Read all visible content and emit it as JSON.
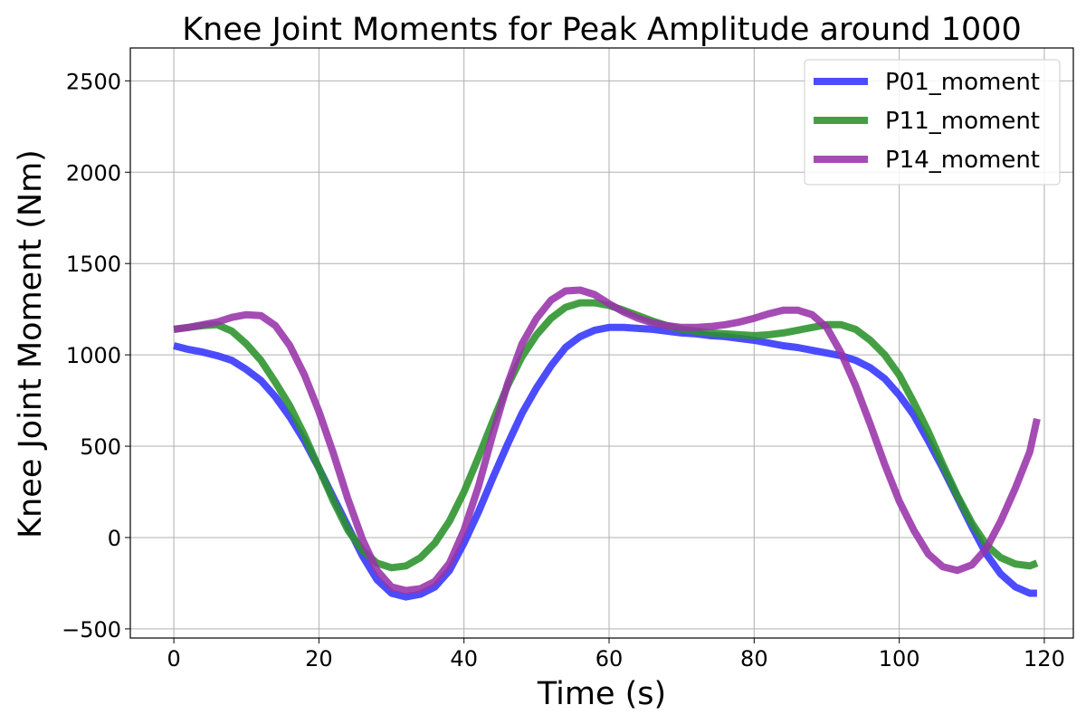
{
  "chart_data": {
    "type": "line",
    "title": "Knee Joint Moments for Peak Amplitude around 1000",
    "xlabel": "Time (s)",
    "ylabel": "Knee Joint Moment (Nm)",
    "xlim": [
      -6,
      124
    ],
    "ylim": [
      -550,
      2680
    ],
    "xticks": [
      0,
      20,
      40,
      60,
      80,
      100,
      120
    ],
    "yticks": [
      -500,
      0,
      500,
      1000,
      1500,
      2000,
      2500
    ],
    "xtick_labels": [
      "0",
      "20",
      "40",
      "60",
      "80",
      "100",
      "120"
    ],
    "ytick_labels": [
      "−500",
      "0",
      "500",
      "1000",
      "1500",
      "2000",
      "2500"
    ],
    "grid": true,
    "legend_position": "top-right",
    "series": [
      {
        "name": "P01_moment",
        "color": "#3333ff",
        "points": [
          [
            0,
            1050
          ],
          [
            2,
            1030
          ],
          [
            4,
            1015
          ],
          [
            6,
            995
          ],
          [
            8,
            970
          ],
          [
            10,
            920
          ],
          [
            12,
            860
          ],
          [
            14,
            770
          ],
          [
            16,
            660
          ],
          [
            18,
            530
          ],
          [
            20,
            380
          ],
          [
            22,
            220
          ],
          [
            24,
            60
          ],
          [
            26,
            -100
          ],
          [
            28,
            -230
          ],
          [
            30,
            -305
          ],
          [
            32,
            -325
          ],
          [
            34,
            -310
          ],
          [
            36,
            -270
          ],
          [
            38,
            -180
          ],
          [
            40,
            -30
          ],
          [
            42,
            140
          ],
          [
            44,
            330
          ],
          [
            46,
            510
          ],
          [
            48,
            680
          ],
          [
            50,
            820
          ],
          [
            52,
            940
          ],
          [
            54,
            1040
          ],
          [
            56,
            1100
          ],
          [
            58,
            1135
          ],
          [
            60,
            1150
          ],
          [
            62,
            1150
          ],
          [
            64,
            1145
          ],
          [
            66,
            1140
          ],
          [
            68,
            1130
          ],
          [
            70,
            1120
          ],
          [
            72,
            1115
          ],
          [
            74,
            1105
          ],
          [
            76,
            1100
          ],
          [
            78,
            1090
          ],
          [
            80,
            1080
          ],
          [
            82,
            1065
          ],
          [
            84,
            1050
          ],
          [
            86,
            1040
          ],
          [
            88,
            1025
          ],
          [
            90,
            1010
          ],
          [
            92,
            995
          ],
          [
            94,
            970
          ],
          [
            96,
            930
          ],
          [
            98,
            870
          ],
          [
            100,
            780
          ],
          [
            102,
            670
          ],
          [
            104,
            530
          ],
          [
            106,
            380
          ],
          [
            108,
            220
          ],
          [
            110,
            60
          ],
          [
            112,
            -90
          ],
          [
            114,
            -200
          ],
          [
            116,
            -270
          ],
          [
            118,
            -305
          ],
          [
            119,
            -305
          ]
        ]
      },
      {
        "name": "P11_moment",
        "color": "#2a922a",
        "points": [
          [
            0,
            1140
          ],
          [
            2,
            1150
          ],
          [
            4,
            1160
          ],
          [
            6,
            1165
          ],
          [
            8,
            1130
          ],
          [
            10,
            1060
          ],
          [
            12,
            970
          ],
          [
            14,
            850
          ],
          [
            16,
            720
          ],
          [
            18,
            560
          ],
          [
            20,
            380
          ],
          [
            22,
            200
          ],
          [
            24,
            40
          ],
          [
            26,
            -70
          ],
          [
            28,
            -140
          ],
          [
            30,
            -165
          ],
          [
            32,
            -155
          ],
          [
            34,
            -110
          ],
          [
            36,
            -30
          ],
          [
            38,
            90
          ],
          [
            40,
            250
          ],
          [
            42,
            440
          ],
          [
            44,
            640
          ],
          [
            46,
            830
          ],
          [
            48,
            990
          ],
          [
            50,
            1110
          ],
          [
            52,
            1200
          ],
          [
            54,
            1260
          ],
          [
            56,
            1285
          ],
          [
            58,
            1285
          ],
          [
            60,
            1270
          ],
          [
            62,
            1245
          ],
          [
            64,
            1215
          ],
          [
            66,
            1185
          ],
          [
            68,
            1160
          ],
          [
            70,
            1140
          ],
          [
            72,
            1130
          ],
          [
            74,
            1120
          ],
          [
            76,
            1115
          ],
          [
            78,
            1110
          ],
          [
            80,
            1105
          ],
          [
            82,
            1110
          ],
          [
            84,
            1120
          ],
          [
            86,
            1135
          ],
          [
            88,
            1150
          ],
          [
            90,
            1165
          ],
          [
            92,
            1165
          ],
          [
            94,
            1140
          ],
          [
            96,
            1080
          ],
          [
            98,
            1000
          ],
          [
            100,
            890
          ],
          [
            102,
            740
          ],
          [
            104,
            580
          ],
          [
            106,
            400
          ],
          [
            108,
            230
          ],
          [
            110,
            80
          ],
          [
            112,
            -40
          ],
          [
            114,
            -110
          ],
          [
            116,
            -145
          ],
          [
            118,
            -155
          ],
          [
            119,
            -140
          ]
        ]
      },
      {
        "name": "P14_moment",
        "color": "#9933aa",
        "points": [
          [
            0,
            1140
          ],
          [
            2,
            1150
          ],
          [
            4,
            1165
          ],
          [
            6,
            1180
          ],
          [
            8,
            1205
          ],
          [
            10,
            1220
          ],
          [
            12,
            1215
          ],
          [
            14,
            1160
          ],
          [
            16,
            1050
          ],
          [
            18,
            890
          ],
          [
            20,
            690
          ],
          [
            22,
            460
          ],
          [
            24,
            210
          ],
          [
            26,
            -10
          ],
          [
            28,
            -180
          ],
          [
            30,
            -270
          ],
          [
            32,
            -290
          ],
          [
            34,
            -280
          ],
          [
            36,
            -240
          ],
          [
            38,
            -140
          ],
          [
            40,
            40
          ],
          [
            42,
            280
          ],
          [
            44,
            570
          ],
          [
            46,
            840
          ],
          [
            48,
            1060
          ],
          [
            50,
            1200
          ],
          [
            52,
            1300
          ],
          [
            54,
            1350
          ],
          [
            56,
            1355
          ],
          [
            58,
            1330
          ],
          [
            60,
            1280
          ],
          [
            62,
            1235
          ],
          [
            64,
            1200
          ],
          [
            66,
            1175
          ],
          [
            68,
            1160
          ],
          [
            70,
            1150
          ],
          [
            72,
            1150
          ],
          [
            74,
            1155
          ],
          [
            76,
            1165
          ],
          [
            78,
            1180
          ],
          [
            80,
            1200
          ],
          [
            82,
            1225
          ],
          [
            84,
            1245
          ],
          [
            86,
            1245
          ],
          [
            88,
            1220
          ],
          [
            90,
            1150
          ],
          [
            92,
            1010
          ],
          [
            94,
            830
          ],
          [
            96,
            620
          ],
          [
            98,
            400
          ],
          [
            100,
            200
          ],
          [
            102,
            40
          ],
          [
            104,
            -90
          ],
          [
            106,
            -160
          ],
          [
            108,
            -180
          ],
          [
            110,
            -150
          ],
          [
            112,
            -60
          ],
          [
            114,
            90
          ],
          [
            116,
            270
          ],
          [
            118,
            470
          ],
          [
            119,
            650
          ]
        ]
      }
    ]
  }
}
